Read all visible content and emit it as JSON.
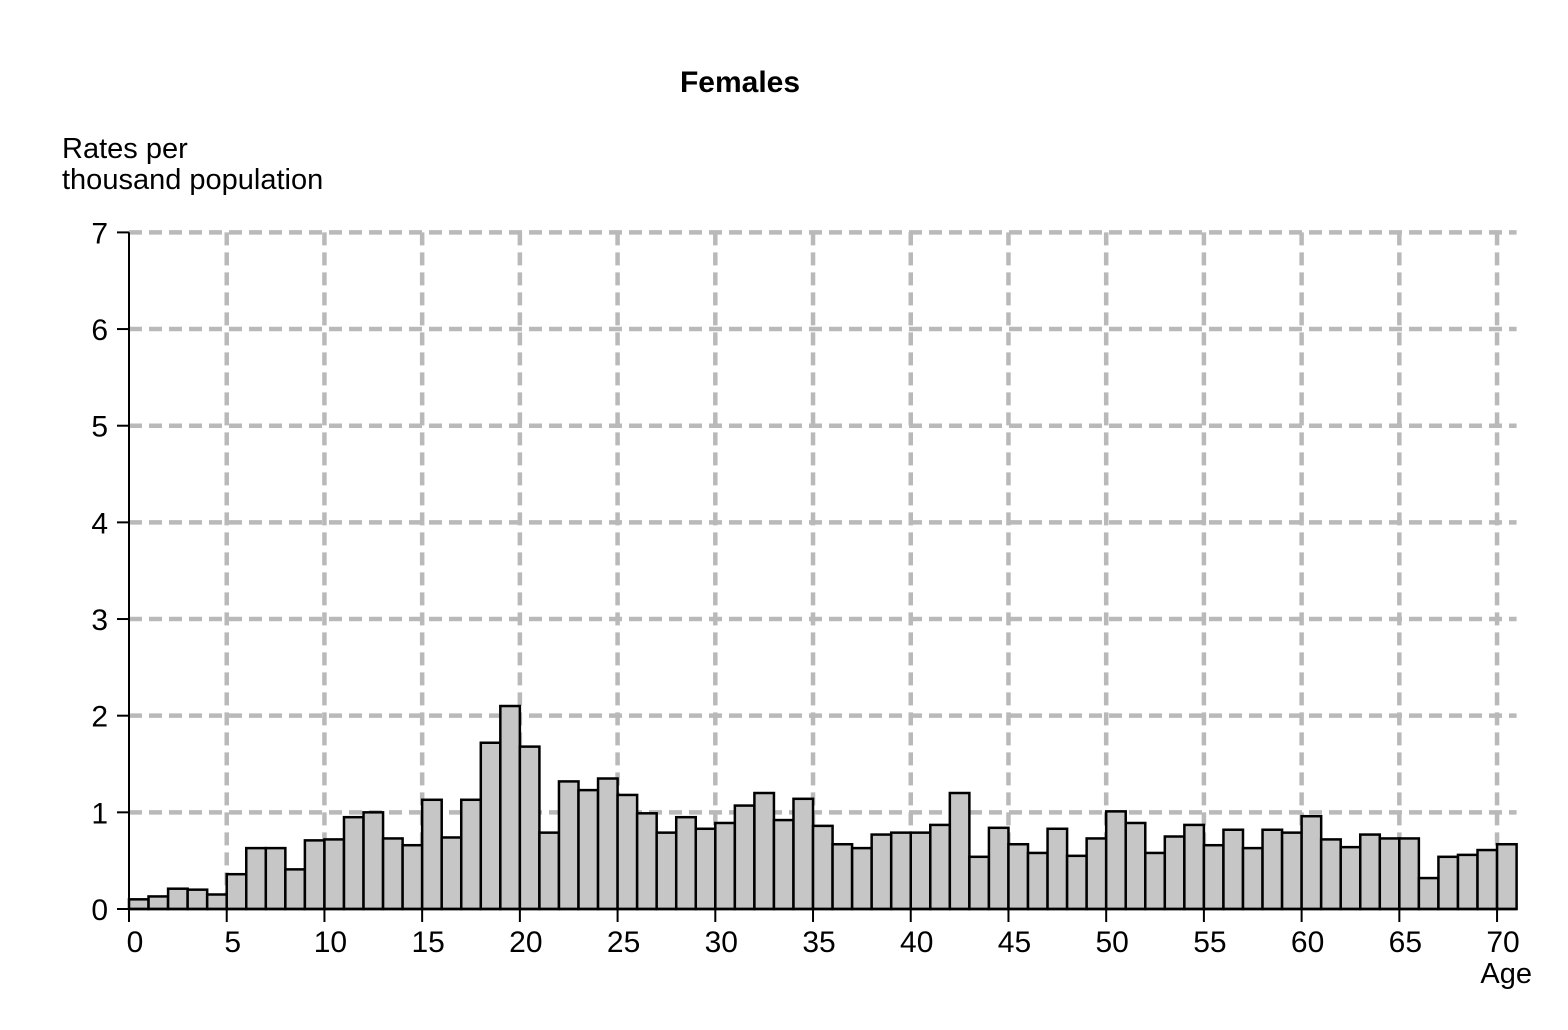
{
  "chart": {
    "title": "Females",
    "y_axis_label_line1": "Rates per",
    "y_axis_label_line2": "thousand population",
    "x_axis_label": "Age"
  },
  "chart_data": {
    "type": "bar",
    "title": "Females",
    "ylabel": "Rates per thousand population",
    "xlabel": "Age",
    "categories_note": "single-year age bins from 0 to 70",
    "x": [
      0,
      1,
      2,
      3,
      4,
      5,
      6,
      7,
      8,
      9,
      10,
      11,
      12,
      13,
      14,
      15,
      16,
      17,
      18,
      19,
      20,
      21,
      22,
      23,
      24,
      25,
      26,
      27,
      28,
      29,
      30,
      31,
      32,
      33,
      34,
      35,
      36,
      37,
      38,
      39,
      40,
      41,
      42,
      43,
      44,
      45,
      46,
      47,
      48,
      49,
      50,
      51,
      52,
      53,
      54,
      55,
      56,
      57,
      58,
      59,
      60,
      61,
      62,
      63,
      64,
      65,
      66,
      67,
      68,
      69,
      70
    ],
    "values": [
      0.1,
      0.13,
      0.21,
      0.2,
      0.15,
      0.36,
      0.63,
      0.63,
      0.41,
      0.71,
      0.72,
      0.95,
      1.0,
      0.73,
      0.66,
      1.13,
      0.74,
      1.13,
      1.72,
      2.1,
      1.68,
      0.79,
      1.32,
      1.23,
      1.35,
      1.18,
      0.99,
      0.79,
      0.95,
      0.83,
      0.89,
      1.07,
      1.2,
      0.92,
      1.14,
      0.86,
      0.67,
      0.63,
      0.77,
      0.79,
      0.79,
      0.87,
      1.2,
      0.54,
      0.84,
      0.67,
      0.58,
      0.83,
      0.55,
      0.73,
      1.01,
      0.89,
      0.58,
      0.75,
      0.87,
      0.66,
      0.82,
      0.63,
      0.82,
      0.79,
      0.96,
      0.72,
      0.64,
      0.77,
      0.73,
      0.73,
      0.32,
      0.54,
      0.56,
      0.61,
      0.67
    ],
    "ylim": [
      0,
      7
    ],
    "yticks": [
      0,
      1,
      2,
      3,
      4,
      5,
      6,
      7
    ],
    "xticks": [
      0,
      5,
      10,
      15,
      20,
      25,
      30,
      35,
      40,
      45,
      50,
      55,
      60,
      65,
      70
    ],
    "grid": "dashed",
    "legend": "none",
    "colors": {
      "bar_fill": "#c6c6c6",
      "bar_stroke": "#000000",
      "grid_color": "#b9b9b9",
      "axis_color": "#000000",
      "background": "#ffffff",
      "text_color": "#000000"
    }
  }
}
